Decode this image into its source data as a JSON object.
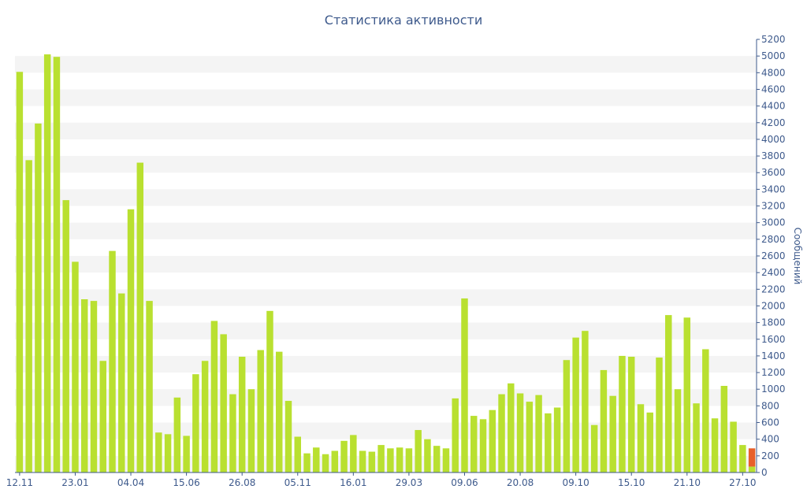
{
  "chart_data": {
    "type": "bar",
    "title": "Статистика активности",
    "ylabel": "Сообщений",
    "ylim": [
      0,
      5200
    ],
    "yticks": [
      0,
      200,
      400,
      600,
      800,
      1000,
      1200,
      1400,
      1600,
      1800,
      2000,
      2200,
      2400,
      2600,
      2800,
      3000,
      3200,
      3400,
      3600,
      3800,
      4000,
      4200,
      4400,
      4600,
      4800,
      5000,
      5200
    ],
    "x_tick_labels": [
      {
        "label": "12.11",
        "index": 0
      },
      {
        "label": "23.01",
        "index": 6
      },
      {
        "label": "04.04",
        "index": 12
      },
      {
        "label": "15.06",
        "index": 18
      },
      {
        "label": "26.08",
        "index": 24
      },
      {
        "label": "05.11",
        "index": 30
      },
      {
        "label": "16.01",
        "index": 36
      },
      {
        "label": "29.03",
        "index": 42
      },
      {
        "label": "09.06",
        "index": 48
      },
      {
        "label": "20.08",
        "index": 54
      },
      {
        "label": "09.10",
        "index": 60
      },
      {
        "label": "15.10",
        "index": 66
      },
      {
        "label": "21.10",
        "index": 72
      },
      {
        "label": "27.10",
        "index": 78
      }
    ],
    "values": [
      4810,
      3750,
      4190,
      5020,
      4990,
      3270,
      2530,
      2080,
      2060,
      1340,
      2660,
      2150,
      3160,
      3720,
      2060,
      480,
      460,
      900,
      440,
      1180,
      1340,
      1820,
      1660,
      940,
      1390,
      1000,
      1470,
      1940,
      1450,
      860,
      430,
      230,
      300,
      220,
      260,
      380,
      450,
      260,
      250,
      330,
      290,
      300,
      290,
      510,
      400,
      320,
      290,
      890,
      2090,
      680,
      640,
      750,
      940,
      1070,
      950,
      850,
      930,
      710,
      780,
      1350,
      1620,
      1700,
      570,
      1230,
      920,
      1400,
      1390,
      820,
      720,
      1380,
      1890,
      1000,
      1860,
      830,
      1480,
      650,
      1040,
      610,
      330,
      290
    ],
    "highlight_index": 79,
    "highlight_split": 70,
    "colors": {
      "bar": "#b9e030",
      "highlight": "#e8602a",
      "text": "#3e5a8c",
      "band": "#f4f4f4"
    },
    "grid": "horizontal bands",
    "y_axis_position": "right"
  }
}
